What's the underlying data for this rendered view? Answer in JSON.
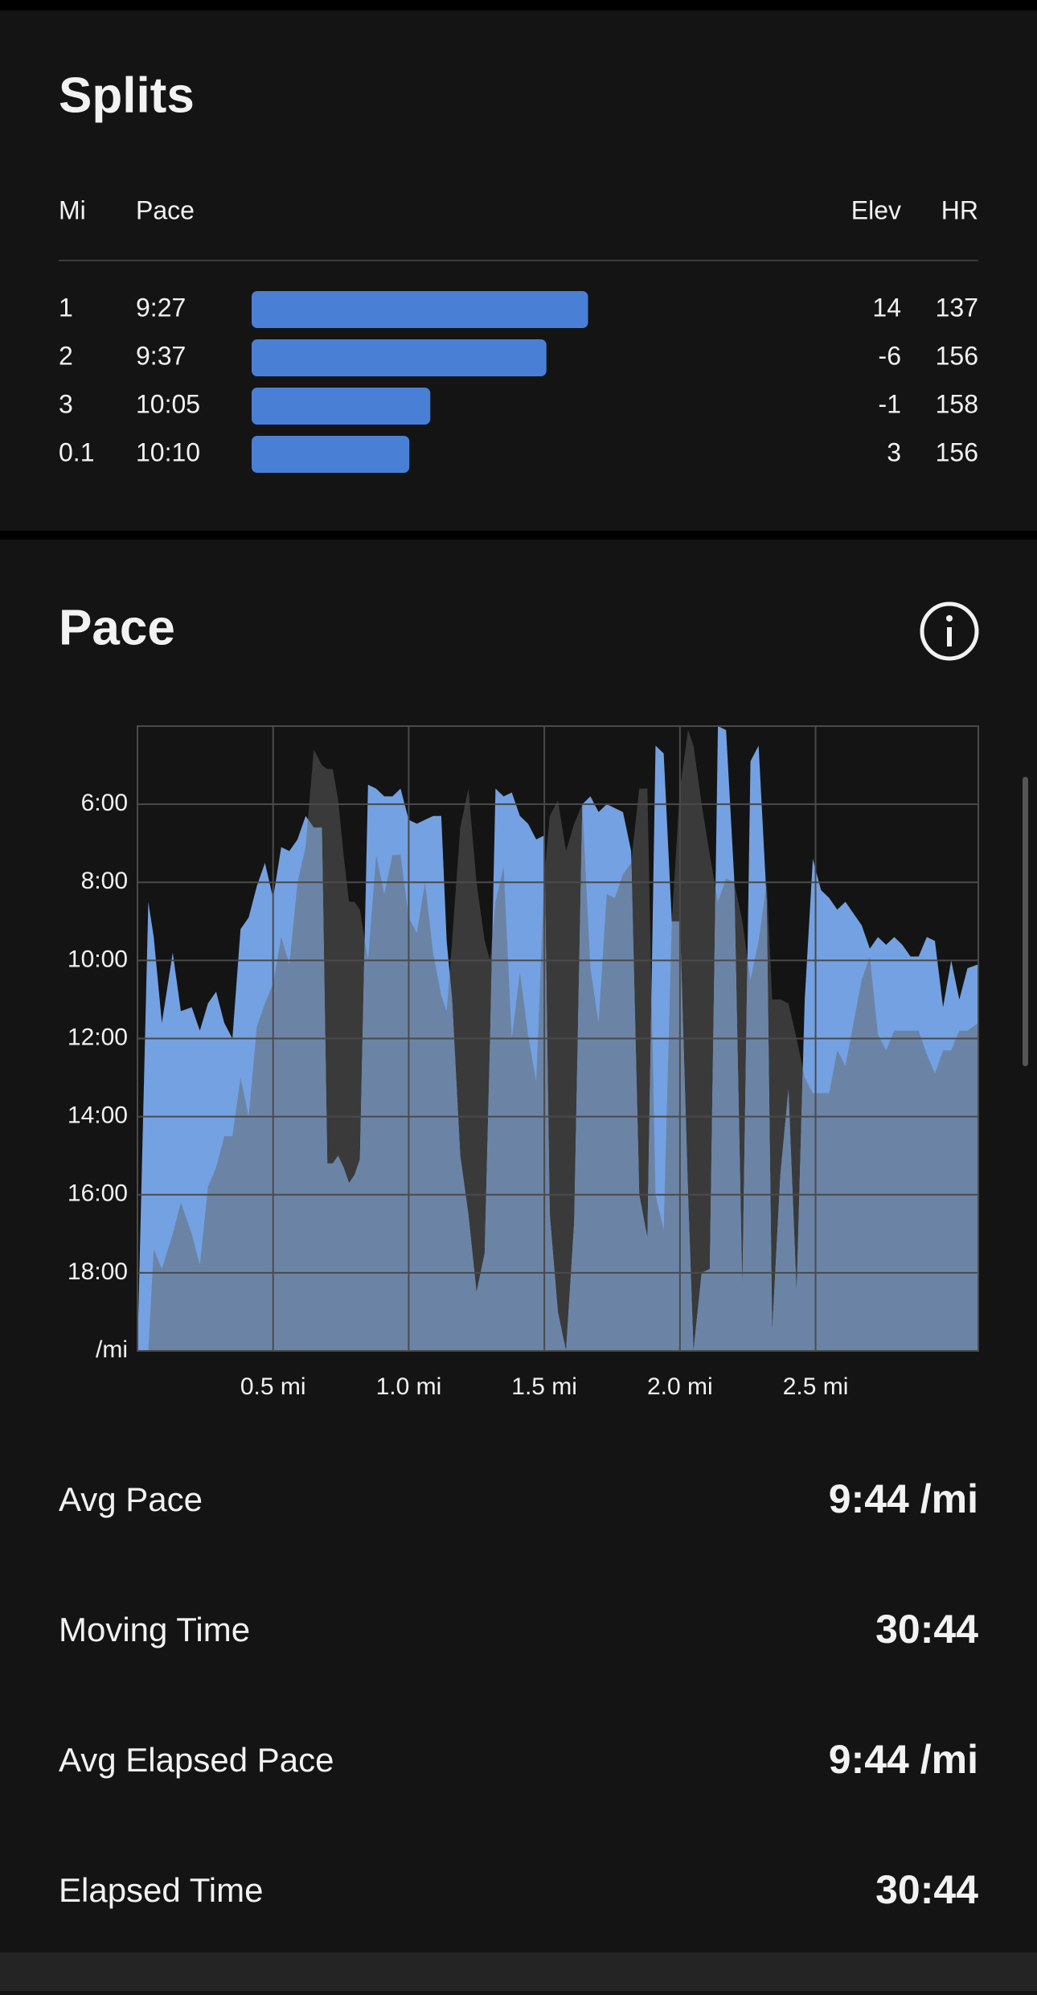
{
  "splits": {
    "title": "Splits",
    "headers": [
      "Mi",
      "Pace",
      "Elev",
      "HR"
    ],
    "bar_color": "#4a7fd6",
    "bar_scale": [
      10.8,
      9.0
    ],
    "rows": [
      {
        "mi": "1",
        "pace": "9:27",
        "pace_minutes": 9.45,
        "elev": "14",
        "hr": "137"
      },
      {
        "mi": "2",
        "pace": "9:37",
        "pace_minutes": 9.617,
        "elev": "-6",
        "hr": "156"
      },
      {
        "mi": "3",
        "pace": "10:05",
        "pace_minutes": 10.083,
        "elev": "-1",
        "hr": "158"
      },
      {
        "mi": "0.1",
        "pace": "10:10",
        "pace_minutes": 10.167,
        "elev": "3",
        "hr": "156"
      }
    ]
  },
  "chart_data": {
    "type": "area",
    "title": "Pace",
    "xlim": [
      0,
      3.1
    ],
    "ylim": [
      20,
      4
    ],
    "grid": true,
    "xticks": [
      {
        "value": 0.5,
        "label": "0.5 mi"
      },
      {
        "value": 1.0,
        "label": "1.0 mi"
      },
      {
        "value": 1.5,
        "label": "1.5 mi"
      },
      {
        "value": 2.0,
        "label": "2.0 mi"
      },
      {
        "value": 2.5,
        "label": "2.5 mi"
      }
    ],
    "yticks": [
      {
        "value": 6,
        "label": "6:00"
      },
      {
        "value": 8,
        "label": "8:00"
      },
      {
        "value": 10,
        "label": "10:00"
      },
      {
        "value": 12,
        "label": "12:00"
      },
      {
        "value": 14,
        "label": "14:00"
      },
      {
        "value": 16,
        "label": "16:00"
      },
      {
        "value": 18,
        "label": "18:00"
      },
      {
        "value": 20,
        "label": "/mi"
      }
    ],
    "overlap_color": "#6b84a6",
    "x": [
      0,
      0.04,
      0.06,
      0.09,
      0.13,
      0.16,
      0.2,
      0.23,
      0.26,
      0.29,
      0.32,
      0.35,
      0.38,
      0.41,
      0.44,
      0.47,
      0.5,
      0.53,
      0.56,
      0.59,
      0.62,
      0.65,
      0.68,
      0.7,
      0.72,
      0.74,
      0.76,
      0.78,
      0.8,
      0.82,
      0.85,
      0.88,
      0.91,
      0.94,
      0.97,
      1.0,
      1.03,
      1.06,
      1.09,
      1.12,
      1.14,
      1.16,
      1.19,
      1.22,
      1.25,
      1.28,
      1.3,
      1.32,
      1.35,
      1.38,
      1.41,
      1.44,
      1.47,
      1.5,
      1.52,
      1.55,
      1.58,
      1.61,
      1.64,
      1.67,
      1.7,
      1.73,
      1.76,
      1.79,
      1.82,
      1.85,
      1.88,
      1.91,
      1.94,
      1.97,
      2.0,
      2.03,
      2.05,
      2.08,
      2.11,
      2.14,
      2.17,
      2.2,
      2.23,
      2.26,
      2.29,
      2.32,
      2.34,
      2.37,
      2.4,
      2.43,
      2.46,
      2.49,
      2.52,
      2.55,
      2.58,
      2.61,
      2.64,
      2.67,
      2.7,
      2.73,
      2.76,
      2.79,
      2.82,
      2.85,
      2.88,
      2.91,
      2.94,
      2.97,
      3.0,
      3.03,
      3.06,
      3.1
    ],
    "series": [
      {
        "color": "#3a3a3a",
        "values": [
          20,
          20,
          17.4,
          17.9,
          17.0,
          16.2,
          17.0,
          17.8,
          15.8,
          15.3,
          14.5,
          14.5,
          13.0,
          14.0,
          11.7,
          11.1,
          10.6,
          9.4,
          10.1,
          8.0,
          7.1,
          4.6,
          5.0,
          5.1,
          5.1,
          5.9,
          7.3,
          8.5,
          8.5,
          8.7,
          10.0,
          7.3,
          8.3,
          7.3,
          7.3,
          8.9,
          9.3,
          8.0,
          9.8,
          10.9,
          11.3,
          9.5,
          6.6,
          5.6,
          8.0,
          9.5,
          10.0,
          8.5,
          7.6,
          12.0,
          10.3,
          11.9,
          13.1,
          7.8,
          6.3,
          5.9,
          7.2,
          6.5,
          6.0,
          10.2,
          11.6,
          8.3,
          8.4,
          7.8,
          7.5,
          5.6,
          5.6,
          16.0,
          16.9,
          9.0,
          5.6,
          4.1,
          4.5,
          6.0,
          7.3,
          8.5,
          7.9,
          8.0,
          9.0,
          10.5,
          9.5,
          8.0,
          11.0,
          11.0,
          11.1,
          12.0,
          13.0,
          13.4,
          13.4,
          13.4,
          12.3,
          12.7,
          11.6,
          10.5,
          9.9,
          11.9,
          12.3,
          11.8,
          11.8,
          11.8,
          11.8,
          12.4,
          12.9,
          12.3,
          12.3,
          11.8,
          11.8,
          11.6
        ]
      },
      {
        "color": "#74a1e2",
        "values": [
          20,
          8.5,
          9.4,
          11.6,
          9.8,
          11.3,
          11.2,
          11.8,
          11.1,
          10.8,
          11.6,
          12.0,
          9.2,
          8.9,
          8.1,
          7.5,
          8.4,
          7.1,
          7.2,
          6.9,
          6.3,
          6.6,
          6.6,
          15.2,
          15.2,
          15.0,
          15.3,
          15.7,
          15.5,
          15.1,
          5.5,
          5.6,
          5.8,
          5.8,
          5.6,
          6.4,
          6.5,
          6.4,
          6.3,
          6.3,
          9.5,
          11.0,
          15.0,
          16.5,
          18.5,
          17.5,
          12.0,
          5.6,
          5.8,
          5.7,
          6.3,
          6.5,
          6.9,
          6.8,
          16.5,
          19.0,
          20.0,
          16.7,
          6.0,
          5.8,
          6.2,
          6.0,
          6.1,
          6.2,
          7.2,
          16.0,
          17.1,
          4.5,
          4.7,
          9.0,
          9.0,
          16.0,
          20.0,
          18.0,
          17.9,
          4.0,
          4.1,
          7.9,
          18.4,
          4.9,
          4.5,
          8.5,
          19.5,
          15.5,
          13.3,
          18.5,
          11.0,
          7.4,
          8.2,
          8.4,
          8.7,
          8.5,
          8.8,
          9.1,
          9.7,
          9.4,
          9.6,
          9.4,
          9.6,
          9.9,
          9.9,
          9.4,
          9.5,
          11.2,
          10.0,
          11.0,
          10.2,
          10.1
        ]
      }
    ]
  },
  "stats": [
    {
      "label": "Avg Pace",
      "value": "9:44 /mi"
    },
    {
      "label": "Moving Time",
      "value": "30:44"
    },
    {
      "label": "Avg Elapsed Pace",
      "value": "9:44 /mi"
    },
    {
      "label": "Elapsed Time",
      "value": "30:44"
    }
  ]
}
